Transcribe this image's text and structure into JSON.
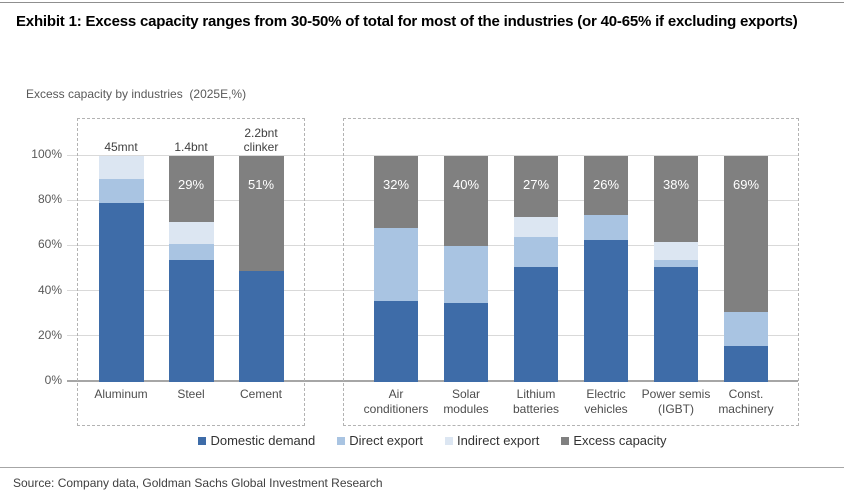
{
  "header": {
    "title": "Exhibit 1: Excess capacity ranges from 30-50% of total for most of the industries (or 40-65% if excluding exports)"
  },
  "chart": {
    "subtitle": "Excess capacity by industries  (2025E,%)"
  },
  "chart_data": {
    "type": "bar",
    "stacked": true,
    "title": "Excess capacity by industries (2025E,%)",
    "unit": "%",
    "ylim": [
      0,
      100
    ],
    "yticks": [
      "0%",
      "20%",
      "40%",
      "60%",
      "80%",
      "100%"
    ],
    "grid": true,
    "legend_position": "bottom",
    "series": [
      {
        "name": "Domestic demand",
        "color": "#3E6CA8"
      },
      {
        "name": "Direct export",
        "color": "#A9C4E2"
      },
      {
        "name": "Indirect export",
        "color": "#DCE6F2"
      },
      {
        "name": "Excess capacity",
        "color": "#808080"
      }
    ],
    "series_order_note": "values arrays follow series order: [Domestic demand, Direct export, Indirect export, Excess capacity]",
    "groups": [
      {
        "categories": [
          "Aluminum",
          "Steel",
          "Cement"
        ],
        "annotations": [
          "45mnt",
          "1.4bnt",
          "2.2bnt clinker"
        ],
        "values": [
          [
            79,
            11,
            10,
            0
          ],
          [
            54,
            7,
            10,
            29
          ],
          [
            49,
            0,
            0,
            51
          ]
        ],
        "excess_labels": [
          "",
          "29%",
          "51%"
        ]
      },
      {
        "categories": [
          "Air conditioners",
          "Solar modules",
          "Lithium batteries",
          "Electric vehicles",
          "Power semis (IGBT)",
          "Const. machinery"
        ],
        "annotations": [
          "",
          "",
          "",
          "",
          "",
          ""
        ],
        "values": [
          [
            36,
            32,
            0,
            32
          ],
          [
            35,
            25,
            0,
            40
          ],
          [
            51,
            13,
            9,
            27
          ],
          [
            63,
            11,
            0,
            26
          ],
          [
            51,
            3,
            8,
            38
          ],
          [
            16,
            15,
            0,
            69
          ]
        ],
        "excess_labels": [
          "32%",
          "40%",
          "27%",
          "26%",
          "38%",
          "69%"
        ]
      }
    ]
  },
  "footer": {
    "source": "Source: Company data, Goldman Sachs Global Investment Research"
  }
}
